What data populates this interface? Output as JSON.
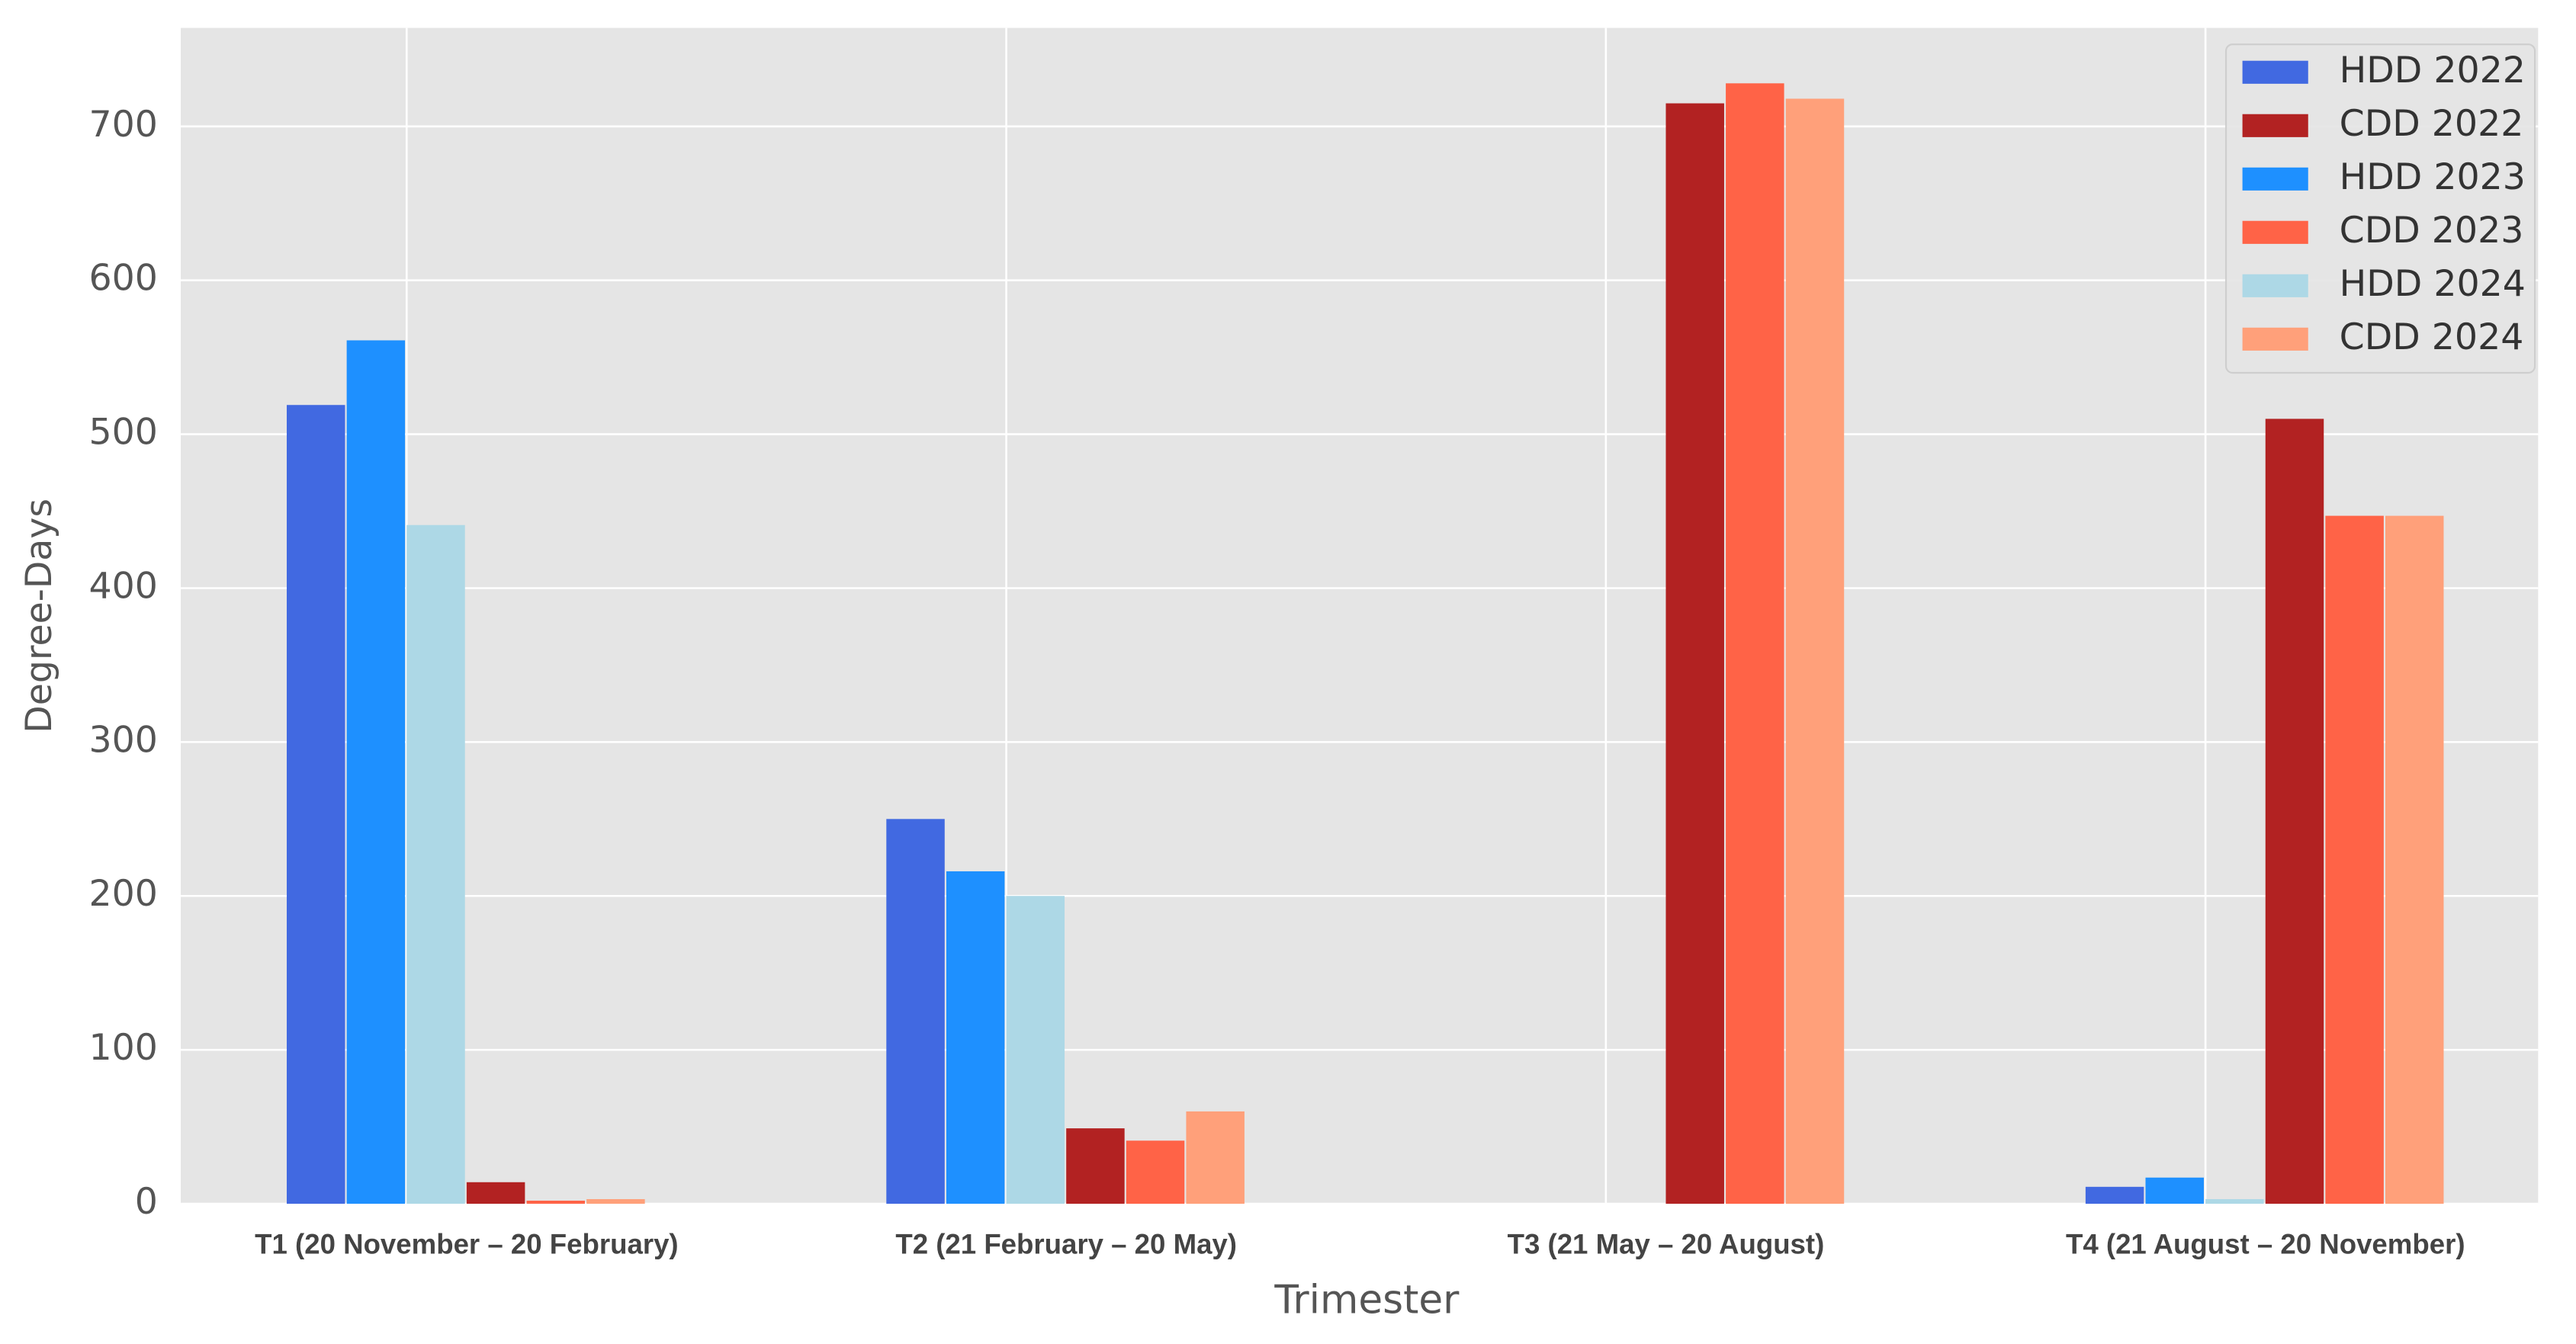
{
  "chart_data": {
    "type": "bar",
    "x_label": "Trimester",
    "y_label": "Degree-Days",
    "categories": [
      "T1 (20 November – 20 February)",
      "T2 (21 February – 20 May)",
      "T3 (21 May – 20 August)",
      "T4 (21 August – 20 November)"
    ],
    "series": [
      {
        "name": "HDD 2022",
        "color": "#4169e1",
        "values": [
          519,
          250,
          0,
          11
        ]
      },
      {
        "name": "CDD 2022",
        "color": "#b22222",
        "values": [
          14,
          49,
          715,
          510
        ]
      },
      {
        "name": "HDD 2023",
        "color": "#1e90ff",
        "values": [
          561,
          216,
          0,
          17
        ]
      },
      {
        "name": "CDD 2023",
        "color": "#ff6347",
        "values": [
          2,
          41,
          728,
          447
        ]
      },
      {
        "name": "HDD 2024",
        "color": "#add8e6",
        "values": [
          441,
          200,
          0,
          3
        ]
      },
      {
        "name": "CDD 2024",
        "color": "#ffa07a",
        "values": [
          3,
          60,
          718,
          447
        ]
      }
    ],
    "ylim": [
      0,
      764
    ],
    "yticks": [
      0,
      100,
      200,
      300,
      400,
      500,
      600,
      700
    ],
    "grid": true,
    "legend": "upper right"
  }
}
